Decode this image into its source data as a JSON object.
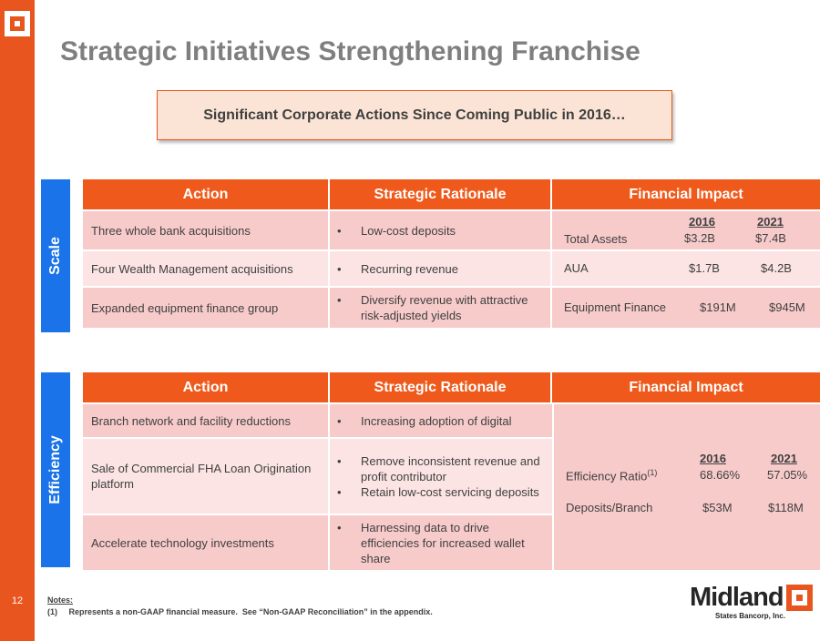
{
  "page": {
    "title": "Strategic Initiatives Strengthening Franchise",
    "callout": "Significant Corporate Actions Since Coming Public in 2016…",
    "page_number": "12"
  },
  "table_headers": {
    "action": "Action",
    "rationale": "Strategic Rationale",
    "impact": "Financial Impact"
  },
  "scale": {
    "label": "Scale",
    "rows": [
      {
        "action": "Three whole bank acquisitions",
        "rationale": [
          "Low-cost deposits"
        ],
        "impact_label": "Total Assets",
        "col_2016": "$3.2B",
        "col_2021": "$7.4B"
      },
      {
        "action": "Four Wealth Management acquisitions",
        "rationale": [
          "Recurring revenue"
        ],
        "impact_label": "AUA",
        "col_2016": "$1.7B",
        "col_2021": "$4.2B"
      },
      {
        "action": "Expanded equipment finance group",
        "rationale": [
          "Diversify revenue with attractive risk-adjusted yields"
        ],
        "impact_label": "Equipment Finance",
        "col_2016": "$191M",
        "col_2021": "$945M"
      }
    ],
    "year_2016": "2016",
    "year_2021": "2021"
  },
  "efficiency": {
    "label": "Efficiency",
    "rows": [
      {
        "action": "Branch network and facility reductions",
        "rationale": [
          "Increasing adoption of digital"
        ]
      },
      {
        "action": "Sale of Commercial FHA Loan Origination platform",
        "rationale": [
          "Remove inconsistent revenue and profit contributor",
          "Retain low-cost servicing deposits"
        ]
      },
      {
        "action": "Accelerate technology investments",
        "rationale": [
          "Harnessing data to drive efficiencies for increased wallet share"
        ]
      }
    ],
    "year_2016": "2016",
    "year_2021": "2021",
    "metrics": [
      {
        "label": "Efficiency Ratio",
        "footnote": "(1)",
        "col_2016": "68.66%",
        "col_2021": "57.05%"
      },
      {
        "label": "Deposits/Branch",
        "footnote": "",
        "col_2016": "$53M",
        "col_2021": "$118M"
      }
    ]
  },
  "notes": {
    "title": "Notes:",
    "items": [
      "(1)     Represents a non-GAAP financial measure.  See “Non-GAAP Reconciliation” in the appendix."
    ]
  },
  "brand": {
    "name": "Midland",
    "subtitle": "States Bancorp, Inc.",
    "accent": "#e8551e",
    "blue": "#1a73e8"
  }
}
